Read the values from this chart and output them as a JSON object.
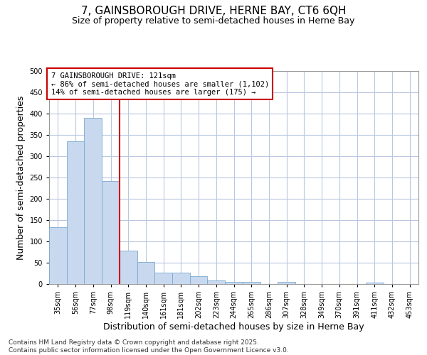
{
  "title_line1": "7, GAINSBOROUGH DRIVE, HERNE BAY, CT6 6QH",
  "title_line2": "Size of property relative to semi-detached houses in Herne Bay",
  "xlabel": "Distribution of semi-detached houses by size in Herne Bay",
  "ylabel": "Number of semi-detached properties",
  "categories": [
    "35sqm",
    "56sqm",
    "77sqm",
    "98sqm",
    "119sqm",
    "140sqm",
    "161sqm",
    "181sqm",
    "202sqm",
    "223sqm",
    "244sqm",
    "265sqm",
    "286sqm",
    "307sqm",
    "328sqm",
    "349sqm",
    "370sqm",
    "391sqm",
    "411sqm",
    "432sqm",
    "453sqm"
  ],
  "values": [
    133,
    335,
    390,
    241,
    79,
    51,
    26,
    26,
    18,
    9,
    5,
    5,
    0,
    5,
    0,
    0,
    0,
    0,
    3,
    0,
    0
  ],
  "bar_color": "#c8d8ee",
  "bar_edge_color": "#7aaad0",
  "marker_line_color": "#cc0000",
  "annotation_text": "7 GAINSBOROUGH DRIVE: 121sqm\n← 86% of semi-detached houses are smaller (1,102)\n14% of semi-detached houses are larger (175) →",
  "annotation_box_color": "white",
  "annotation_box_edge_color": "#cc0000",
  "ylim": [
    0,
    500
  ],
  "yticks": [
    0,
    50,
    100,
    150,
    200,
    250,
    300,
    350,
    400,
    450,
    500
  ],
  "grid_color": "#b8c8e0",
  "bg_color": "white",
  "footer_text": "Contains HM Land Registry data © Crown copyright and database right 2025.\nContains public sector information licensed under the Open Government Licence v3.0.",
  "title_fontsize": 11,
  "subtitle_fontsize": 9,
  "annotation_fontsize": 7.5,
  "axis_label_fontsize": 9,
  "tick_fontsize": 7,
  "footer_fontsize": 6.5
}
